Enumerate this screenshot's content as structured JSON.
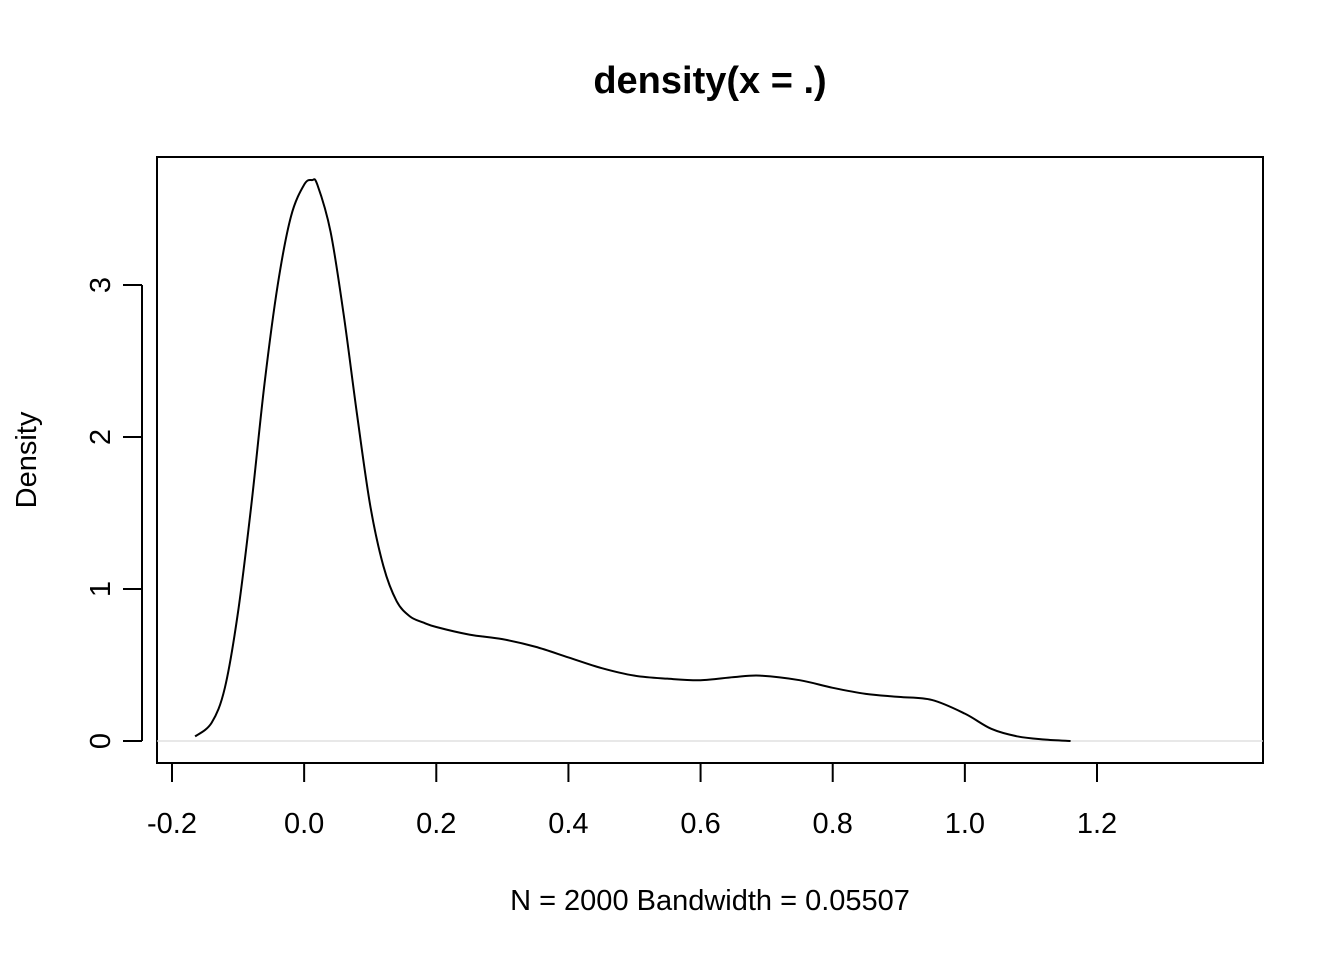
{
  "chart_data": {
    "type": "line",
    "title": "density(x = .)",
    "xlabel": "N = 2000   Bandwidth = 0.05507",
    "ylabel": "Density",
    "xlim": [
      -0.2,
      1.2
    ],
    "ylim": [
      0,
      3.75
    ],
    "x_ticks": [
      -0.2,
      0.0,
      0.2,
      0.4,
      0.6,
      0.8,
      1.0,
      1.2
    ],
    "x_tick_labels": [
      "-0.2",
      "0.0",
      "0.2",
      "0.4",
      "0.6",
      "0.8",
      "1.0",
      "1.2"
    ],
    "y_ticks": [
      0,
      1,
      2,
      3
    ],
    "y_tick_labels": [
      "0",
      "1",
      "2",
      "3"
    ],
    "zero_line": true,
    "grid": false,
    "series": [
      {
        "x": [
          -0.165,
          -0.14,
          -0.12,
          -0.1,
          -0.08,
          -0.06,
          -0.04,
          -0.02,
          0.0,
          0.012,
          0.02,
          0.04,
          0.06,
          0.08,
          0.1,
          0.12,
          0.14,
          0.16,
          0.18,
          0.2,
          0.25,
          0.3,
          0.35,
          0.4,
          0.45,
          0.5,
          0.55,
          0.6,
          0.65,
          0.69,
          0.75,
          0.8,
          0.85,
          0.9,
          0.95,
          1.0,
          1.04,
          1.08,
          1.12,
          1.16
        ],
        "y": [
          0.03,
          0.12,
          0.35,
          0.85,
          1.55,
          2.35,
          3.0,
          3.45,
          3.66,
          3.69,
          3.66,
          3.35,
          2.8,
          2.15,
          1.55,
          1.15,
          0.92,
          0.82,
          0.78,
          0.75,
          0.7,
          0.67,
          0.62,
          0.55,
          0.48,
          0.43,
          0.41,
          0.4,
          0.42,
          0.43,
          0.4,
          0.35,
          0.31,
          0.29,
          0.27,
          0.18,
          0.08,
          0.03,
          0.01,
          0.0
        ]
      }
    ]
  }
}
